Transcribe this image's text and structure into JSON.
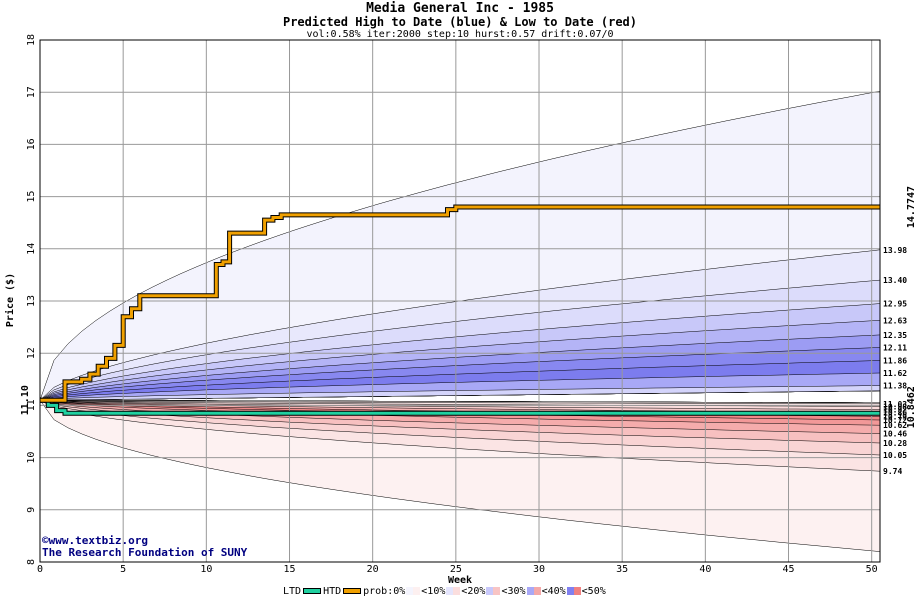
{
  "title": "Media General Inc - 1985",
  "subtitle": "Predicted High to Date (blue) &  Low to Date (red)",
  "params": "vol:0.58% iter:2000 step:10 hurst:0.57 drift:0.07/0",
  "credit_url": "©www.textbiz.org",
  "credit_org": "The Research Foundation of SUNY",
  "legend": {
    "ltd": "LTD",
    "htd": "HTD",
    "prob": "prob:0%",
    "b10": "<10%",
    "b20": "<20%",
    "b30": "<30%",
    "b40": "<40%",
    "b50": "<50%"
  },
  "colors": {
    "htd_line": "#f0a000",
    "ltd_line": "#20d0a0",
    "high_label": "#a07000",
    "low_label": "#008060",
    "credit": "#000080"
  },
  "chart_data": {
    "type": "area",
    "title": "Media General Inc - 1985",
    "xlabel": "Week",
    "ylabel": "Price ($)",
    "xlim": [
      0,
      50.5
    ],
    "ylim": [
      8,
      18
    ],
    "x_ticks": [
      0,
      5,
      10,
      15,
      20,
      25,
      30,
      35,
      40,
      45,
      50
    ],
    "y_ticks": [
      8,
      9,
      10,
      11,
      12,
      13,
      14,
      15,
      16,
      17,
      18
    ],
    "grid": true,
    "start_price": 11.1,
    "start_label": "11.10",
    "high_final_label": "14.7747",
    "low_final_label": "10.8462",
    "upper_band_outer": 17.02,
    "lower_band_outer": 8.2,
    "high_quantiles": [
      {
        "value": 13.98,
        "label": "13.98"
      },
      {
        "value": 13.4,
        "label": "13.40"
      },
      {
        "value": 12.95,
        "label": "12.95"
      },
      {
        "value": 12.63,
        "label": "12.63"
      },
      {
        "value": 12.35,
        "label": "12.35"
      },
      {
        "value": 12.11,
        "label": "12.11"
      },
      {
        "value": 11.86,
        "label": "11.86"
      },
      {
        "value": 11.62,
        "label": "11.62"
      },
      {
        "value": 11.38,
        "label": "11.38"
      }
    ],
    "low_quantiles": [
      {
        "value": 11.03,
        "label": "11.03"
      },
      {
        "value": 10.98,
        "label": "10.98"
      },
      {
        "value": 10.92,
        "label": "10.92"
      },
      {
        "value": 10.86,
        "label": "10.86"
      },
      {
        "value": 10.79,
        "label": "10.79"
      },
      {
        "value": 10.72,
        "label": "10.72"
      },
      {
        "value": 10.62,
        "label": "10.62"
      },
      {
        "value": 10.46,
        "label": "10.46"
      },
      {
        "value": 10.28,
        "label": "10.28"
      },
      {
        "value": 10.05,
        "label": "10.05"
      },
      {
        "value": 9.74,
        "label": "9.74"
      }
    ],
    "series": [
      {
        "name": "HTD",
        "x": [
          0,
          1.5,
          1.5,
          2.5,
          2.5,
          3,
          3,
          3.5,
          3.5,
          4,
          4,
          4.5,
          4.5,
          5,
          5,
          5.5,
          5.5,
          6,
          6,
          10.6,
          10.6,
          11,
          11,
          11.4,
          11.4,
          13.5,
          13.5,
          14,
          14,
          14.5,
          14.5,
          24.5,
          24.5,
          25,
          25,
          50.5
        ],
        "y": [
          11.1,
          11.1,
          11.45,
          11.45,
          11.5,
          11.5,
          11.6,
          11.6,
          11.75,
          11.75,
          11.9,
          11.9,
          12.15,
          12.15,
          12.7,
          12.7,
          12.85,
          12.85,
          13.1,
          13.1,
          13.7,
          13.7,
          13.75,
          13.75,
          14.3,
          14.3,
          14.55,
          14.55,
          14.6,
          14.6,
          14.65,
          14.65,
          14.75,
          14.75,
          14.8,
          14.8
        ]
      },
      {
        "name": "LTD",
        "x": [
          0,
          0.5,
          0.5,
          1,
          1,
          1.5,
          1.5,
          50.5
        ],
        "y": [
          11.1,
          11.1,
          11.0,
          11.0,
          10.9,
          10.9,
          10.85,
          10.85
        ]
      }
    ]
  }
}
